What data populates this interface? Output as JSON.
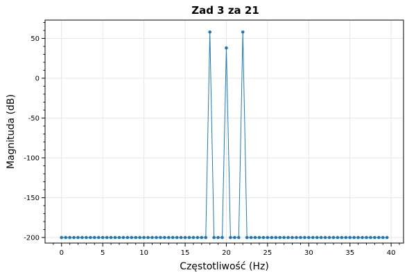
{
  "chart_data": {
    "type": "line",
    "title": "Zad 3 za 21",
    "xlabel": "Częstotliwość (Hz)",
    "ylabel": "Magnituda (dB)",
    "xlim": [
      -2,
      41.5
    ],
    "ylim": [
      -207,
      73
    ],
    "xticks": [
      0,
      5,
      10,
      15,
      20,
      25,
      30,
      35,
      40
    ],
    "yticks": [
      50,
      0,
      -50,
      -100,
      -150,
      -200
    ],
    "grid": true,
    "legend": "none",
    "markers": true,
    "color": "#1f77b4",
    "x": [
      0,
      0.5,
      1,
      1.5,
      2,
      2.5,
      3,
      3.5,
      4,
      4.5,
      5,
      5.5,
      6,
      6.5,
      7,
      7.5,
      8,
      8.5,
      9,
      9.5,
      10,
      10.5,
      11,
      11.5,
      12,
      12.5,
      13,
      13.5,
      14,
      14.5,
      15,
      15.5,
      16,
      16.5,
      17,
      17.5,
      18,
      18.5,
      19,
      19.5,
      20,
      20.5,
      21,
      21.5,
      22,
      22.5,
      23,
      23.5,
      24,
      24.5,
      25,
      25.5,
      26,
      26.5,
      27,
      27.5,
      28,
      28.5,
      29,
      29.5,
      30,
      30.5,
      31,
      31.5,
      32,
      32.5,
      33,
      33.5,
      34,
      34.5,
      35,
      35.5,
      36,
      36.5,
      37,
      37.5,
      38,
      38.5,
      39,
      39.5
    ],
    "y": [
      -200,
      -200,
      -200,
      -200,
      -200,
      -200,
      -200,
      -200,
      -200,
      -200,
      -200,
      -200,
      -200,
      -200,
      -200,
      -200,
      -200,
      -200,
      -200,
      -200,
      -200,
      -200,
      -200,
      -200,
      -200,
      -200,
      -200,
      -200,
      -200,
      -200,
      -200,
      -200,
      -200,
      -200,
      -200,
      -200,
      58,
      -200,
      -200,
      -200,
      38,
      -200,
      -200,
      -200,
      58,
      -200,
      -200,
      -200,
      -200,
      -200,
      -200,
      -200,
      -200,
      -200,
      -200,
      -200,
      -200,
      -200,
      -200,
      -200,
      -200,
      -200,
      -200,
      -200,
      -200,
      -200,
      -200,
      -200,
      -200,
      -200,
      -200,
      -200,
      -200,
      -200,
      -200,
      -200,
      -200,
      -200,
      -200,
      -200
    ]
  }
}
